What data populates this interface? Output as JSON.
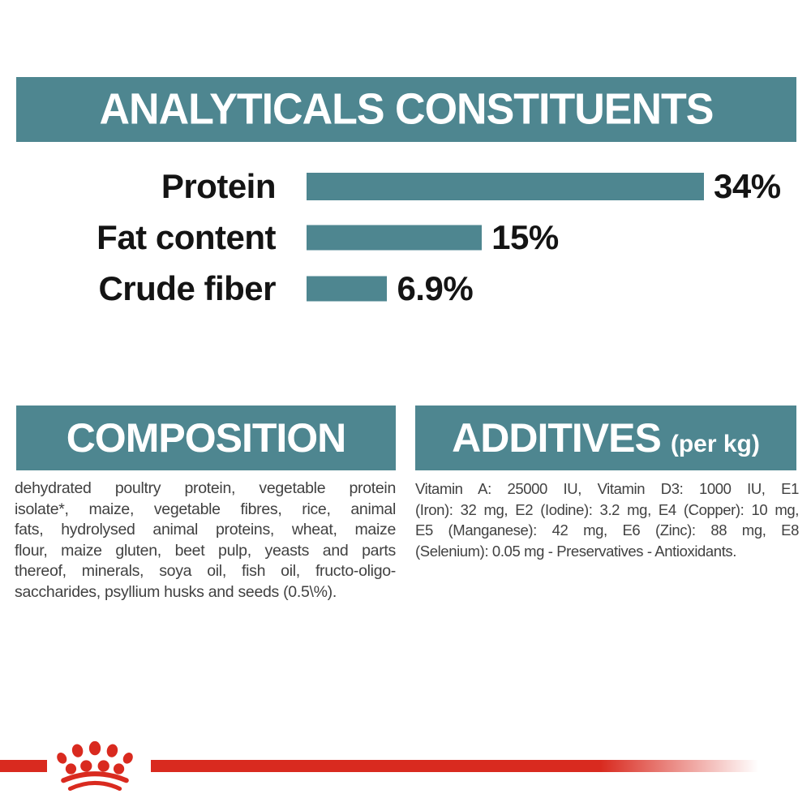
{
  "analyticals": {
    "title": "ANALYTICALS CONSTITUENTS"
  },
  "chart_data": {
    "type": "bar",
    "orientation": "horizontal",
    "title": "ANALYTICALS CONSTITUENTS",
    "categories": [
      "Protein",
      "Fat content",
      "Crude fiber"
    ],
    "values": [
      34,
      15,
      6.9
    ],
    "value_labels": [
      "34%",
      "15%",
      "6.9%"
    ],
    "unit": "%",
    "xlim": [
      0,
      34
    ],
    "grid": false,
    "bar_color": "#4e8690",
    "label_color": "#141414"
  },
  "composition": {
    "heading": "COMPOSITION",
    "lines": [
      "dehydrated poultry protein, vegetable protein",
      "isolate*, maize, vegetable fibres, rice, animal",
      "fats, hydrolysed animal proteins, wheat, maize",
      "flour, maize gluten, beet pulp, yeasts and parts",
      "thereof, minerals, soya oil, fish oil, fructo-oligo-",
      "saccharides, psyllium husks and seeds (0.5\\%)."
    ]
  },
  "additives": {
    "heading": "ADDITIVES",
    "heading_suffix": "(per kg)",
    "lines": [
      "Vitamin A: 25000 IU, Vitamin D3: 1000 IU, E1",
      "(Iron): 32 mg, E2 (Iodine): 3.2 mg, E4 (Copper): 10 mg,",
      "E5 (Manganese): 42 mg, E6 (Zinc): 88 mg, E8",
      "(Selenium): 0.05 mg - Preservatives - Antioxidants."
    ]
  },
  "footer": {
    "logo": "royal-canin-crown"
  },
  "colors": {
    "teal": "#4e8690",
    "red": "#d92a1f",
    "heading_text": "#ffffff",
    "body_text": "#414141"
  }
}
